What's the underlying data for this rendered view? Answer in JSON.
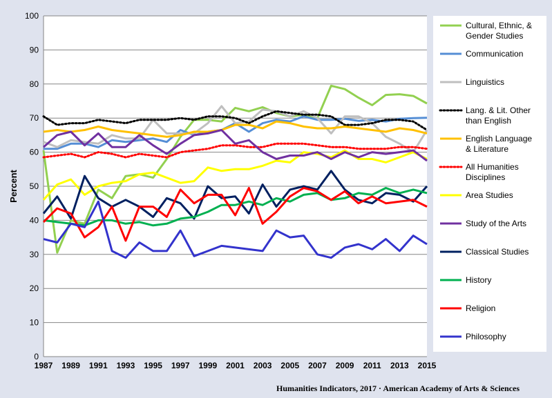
{
  "footer": {
    "source": "Humanities Indicators, 2017",
    "separator": "·",
    "org": "American Academy of Arts & Sciences"
  },
  "chart_data": {
    "type": "line",
    "ylabel": "Percent",
    "xlabel": "",
    "title": "",
    "ylim": [
      0,
      100
    ],
    "yticks": [
      0,
      10,
      20,
      30,
      40,
      50,
      60,
      70,
      80,
      90,
      100
    ],
    "xlim": [
      1987,
      2015
    ],
    "xticks": [
      1987,
      1989,
      1991,
      1993,
      1995,
      1997,
      1999,
      2001,
      2003,
      2005,
      2007,
      2009,
      2011,
      2013,
      2015
    ],
    "x": [
      1987,
      1988,
      1989,
      1990,
      1991,
      1992,
      1993,
      1994,
      1995,
      1996,
      1997,
      1998,
      1999,
      2000,
      2001,
      2002,
      2003,
      2004,
      2005,
      2006,
      2007,
      2008,
      2009,
      2010,
      2011,
      2012,
      2013,
      2014,
      2015
    ],
    "grid": "horizontal",
    "legend_position": "right",
    "series": [
      {
        "name": [
          "Cultural, Ethnic, &",
          "Gender Studies"
        ],
        "color": "#92d050",
        "dash": "solid",
        "values": [
          60.5,
          30.5,
          40,
          39,
          49,
          46.5,
          53,
          53.5,
          52.5,
          58,
          64.5,
          69.5,
          69.5,
          69,
          73,
          72,
          73.2,
          71.5,
          70.5,
          71,
          70,
          79.5,
          78.5,
          76,
          73.8,
          76.8,
          77,
          76.5,
          74.3
        ]
      },
      {
        "name": [
          "Communication"
        ],
        "color": "#558ed5",
        "dash": "solid",
        "values": [
          61,
          61,
          62.5,
          62.5,
          61.5,
          63.5,
          63,
          63.5,
          64,
          63,
          66.5,
          65,
          66,
          66.5,
          68.5,
          66,
          68.5,
          69.5,
          69,
          70.5,
          69.5,
          69.5,
          69.8,
          69.2,
          69.5,
          69,
          69.8,
          70,
          70.1
        ]
      },
      {
        "name": [
          "Linguistics"
        ],
        "color": "#bfbfbf",
        "dash": "solid",
        "values": [
          63,
          61.5,
          63.5,
          63,
          62.5,
          65,
          64,
          64,
          69.5,
          65.5,
          65.5,
          65.5,
          68.5,
          73.5,
          68.5,
          69,
          72.5,
          72,
          70.5,
          72,
          70,
          65.5,
          70.5,
          70.5,
          68.5,
          64.5,
          62.5,
          60,
          66.5
        ]
      },
      {
        "name": [
          "Lang. & Lit. Other",
          "than English"
        ],
        "color": "#000000",
        "dash": "2,3",
        "values": [
          70.5,
          68,
          68.5,
          68.5,
          69.5,
          69,
          68.5,
          69.5,
          69.5,
          69.5,
          70,
          69.5,
          70.5,
          70.5,
          70,
          68.5,
          70.5,
          72,
          71.5,
          71,
          71,
          70.5,
          68,
          68,
          68.5,
          69.5,
          69.5,
          69,
          66.5
        ]
      },
      {
        "name": [
          "English Language",
          "& Literature"
        ],
        "color": "#ffc000",
        "dash": "solid",
        "values": [
          66,
          66.5,
          66,
          66.5,
          67.5,
          66.5,
          66,
          65.5,
          65,
          64.5,
          65,
          66,
          66,
          66.5,
          68,
          68,
          67,
          69,
          68.5,
          67.5,
          67,
          67,
          67.5,
          67,
          66.5,
          66,
          67,
          66.5,
          65.5
        ]
      },
      {
        "name": [
          "All Humanities",
          "Disciplines"
        ],
        "color": "#ff0000",
        "dash": "2,3",
        "values": [
          58.5,
          59,
          59.5,
          58.5,
          60,
          59.5,
          58.5,
          59.5,
          59,
          58.5,
          60,
          60.5,
          61,
          62,
          62,
          61.5,
          61.5,
          62.5,
          62.5,
          62.5,
          62,
          61.5,
          61.5,
          61,
          61,
          61,
          61.5,
          61.5,
          61
        ]
      },
      {
        "name": [
          "Area Studies"
        ],
        "color": "#ffff00",
        "dash": "solid",
        "values": [
          46,
          50.5,
          52,
          47.5,
          50,
          51,
          51.5,
          53.5,
          54,
          52.5,
          51,
          51.5,
          55.5,
          54.5,
          55,
          55,
          56,
          57.5,
          57,
          60,
          59.5,
          58.5,
          60.5,
          58,
          58,
          57,
          58.5,
          60,
          58
        ]
      },
      {
        "name": [
          "Study of the Arts"
        ],
        "color": "#7030a0",
        "dash": "solid",
        "values": [
          61.5,
          65,
          66,
          62,
          65.5,
          61.5,
          61.5,
          65,
          62,
          59.5,
          62.5,
          65,
          65.5,
          66.5,
          62.5,
          63.5,
          60,
          58,
          59,
          59,
          60,
          58,
          60,
          58.5,
          60,
          59.5,
          60,
          60.5,
          57.5
        ]
      },
      {
        "name": [
          "Classical Studies"
        ],
        "color": "#002060",
        "dash": "solid",
        "values": [
          42,
          47,
          40.5,
          53,
          46.5,
          44,
          46,
          44,
          41,
          46.5,
          45,
          40.5,
          50,
          46.5,
          47,
          42,
          50.5,
          44,
          49,
          50,
          49,
          54.5,
          49,
          46,
          45,
          48,
          47.5,
          45.5,
          50
        ]
      },
      {
        "name": [
          "History"
        ],
        "color": "#00b050",
        "dash": "solid",
        "values": [
          40,
          39.5,
          39,
          38.5,
          40,
          40,
          39,
          39.5,
          38.5,
          39,
          40.5,
          41,
          42.5,
          44.5,
          44.5,
          45.5,
          44.5,
          46.5,
          45.5,
          47.5,
          48,
          46,
          46.5,
          48,
          47.5,
          49.5,
          48,
          49,
          48
        ]
      },
      {
        "name": [
          "Religion"
        ],
        "color": "#ff0000",
        "dash": "solid",
        "values": [
          39.5,
          43.5,
          42,
          35,
          38,
          44,
          34,
          44,
          44,
          41,
          49,
          45,
          47.5,
          47.5,
          41.5,
          49.5,
          39,
          42.5,
          47,
          49.5,
          48.5,
          46,
          48.5,
          45,
          47,
          45,
          45.5,
          46,
          44
        ]
      },
      {
        "name": [
          "Philosophy"
        ],
        "color": "#3333cc",
        "dash": "solid",
        "values": [
          34.5,
          33.5,
          39,
          38,
          45.5,
          31,
          29,
          33.5,
          31,
          31,
          37,
          29.5,
          31,
          32.5,
          32,
          31.5,
          31,
          37,
          35,
          35.5,
          30,
          29,
          32,
          33,
          31.5,
          34.5,
          31,
          35.5,
          33
        ]
      }
    ]
  }
}
